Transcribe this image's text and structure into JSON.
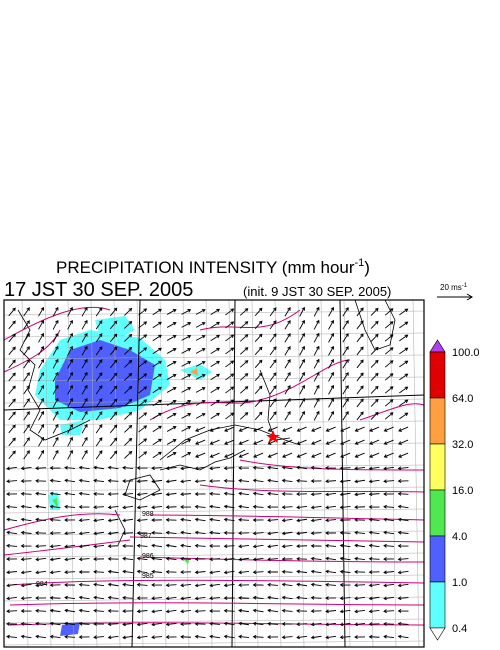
{
  "title": {
    "main": "PRECIPITATION INTENSITY (mm hour",
    "sup": "-1",
    "end": ")"
  },
  "valid_time": "17 JST 30 SEP. 2005",
  "init_time": "(init. 9 JST 30 SEP. 2005)",
  "vector_scale": {
    "main": "20 ms",
    "sup": "-1"
  },
  "legend": {
    "levels": [
      "100.0",
      "64.0",
      "32.0",
      "16.0",
      "4.0",
      "1.0",
      "0.4"
    ],
    "over_color": "#b040f0",
    "colors": [
      "#e00000",
      "#ffa040",
      "#ffff60",
      "#50e850",
      "#5060ff",
      "#60ffff"
    ],
    "under_color": "#ffffff"
  },
  "isobar_labels": [
    "988",
    "987",
    "986",
    "985",
    "984"
  ]
}
